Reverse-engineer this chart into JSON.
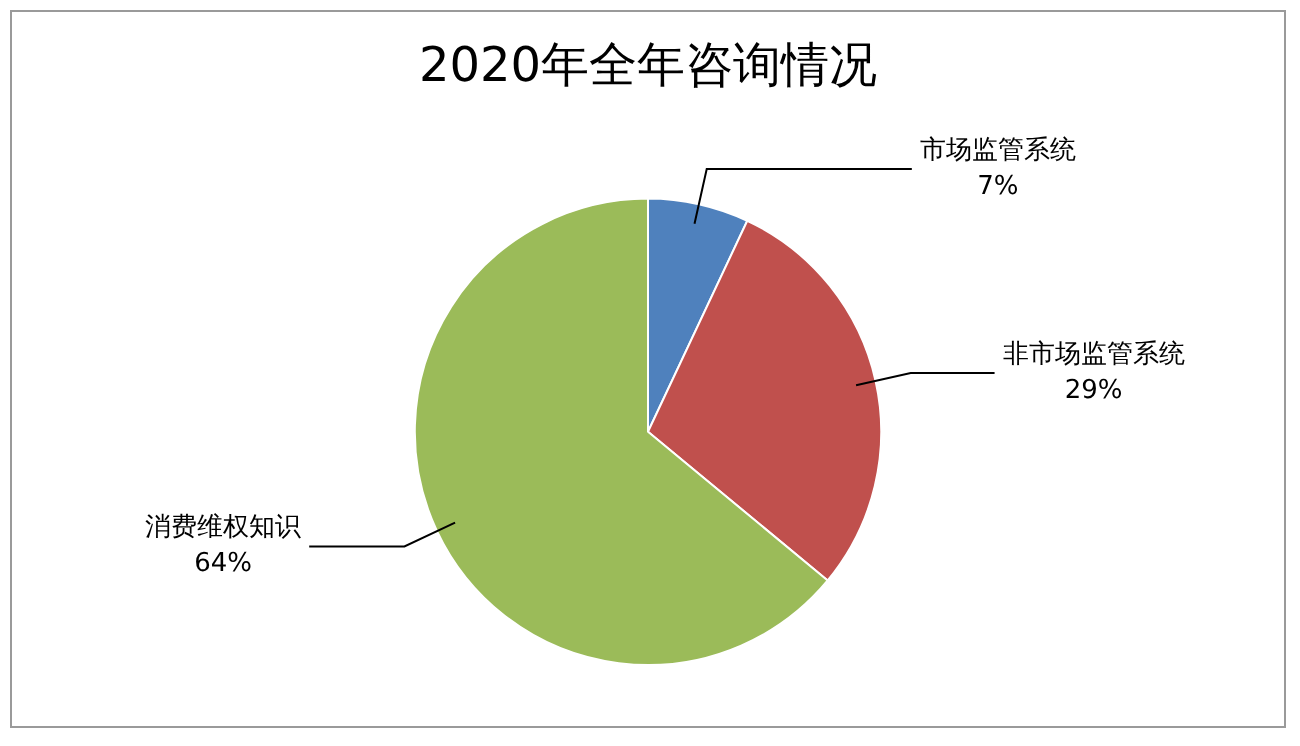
{
  "chart_data": {
    "type": "pie",
    "title": "2020年全年咨询情况",
    "categories": [
      "市场监管系统",
      "非市场监管系统",
      "消费维权知识"
    ],
    "values": [
      7,
      29,
      64
    ],
    "colors": [
      "#4f81bd",
      "#c0504d",
      "#9bbb59"
    ],
    "value_labels": [
      "7%",
      "29%",
      "64%"
    ],
    "legend": false
  }
}
